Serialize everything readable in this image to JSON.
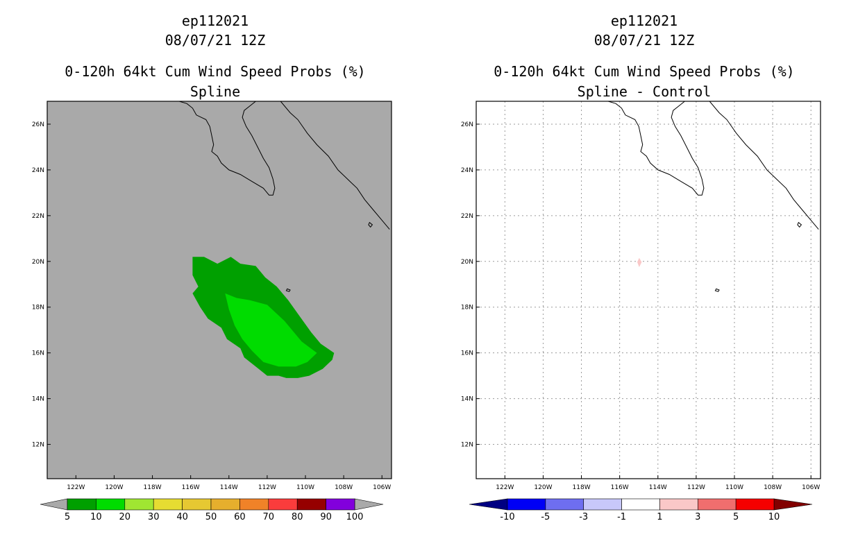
{
  "chart_data": [
    {
      "type": "heatmap",
      "storm_id": "ep112021",
      "datetime": "08/07/21 12Z",
      "title": "0-120h 64kt Cum Wind Speed Probs (%)",
      "subtitle": "Spline",
      "xlim": [
        -123.5,
        -105.5
      ],
      "ylim": [
        10.5,
        27
      ],
      "x_ticks": [
        "122W",
        "120W",
        "118W",
        "116W",
        "114W",
        "112W",
        "110W",
        "108W",
        "106W"
      ],
      "y_ticks": [
        "12N",
        "14N",
        "16N",
        "18N",
        "20N",
        "22N",
        "24N",
        "26N"
      ],
      "grid": false,
      "background": "#a9a9a9",
      "colorbar": {
        "labels": [
          "5",
          "10",
          "20",
          "30",
          "40",
          "50",
          "60",
          "70",
          "80",
          "90",
          "100"
        ],
        "colors": [
          "#00a000",
          "#00dc00",
          "#a0e632",
          "#e6dc32",
          "#e6c832",
          "#e6af2d",
          "#f08228",
          "#fa3c3c",
          "#960000",
          "#8200dc"
        ],
        "under": "#a9a9a9",
        "over": "#a9a9a9"
      },
      "regions": [
        {
          "name": "prob-5-10",
          "value_range": "5-10",
          "color": "#00a000",
          "polygon": [
            [
              -115.9,
              20.2
            ],
            [
              -115.3,
              20.2
            ],
            [
              -114.6,
              19.9
            ],
            [
              -113.9,
              20.2
            ],
            [
              -113.4,
              19.9
            ],
            [
              -112.6,
              19.8
            ],
            [
              -112.1,
              19.3
            ],
            [
              -111.5,
              18.9
            ],
            [
              -110.9,
              18.3
            ],
            [
              -110.3,
              17.6
            ],
            [
              -109.7,
              16.9
            ],
            [
              -109.2,
              16.4
            ],
            [
              -108.5,
              16.0
            ],
            [
              -108.6,
              15.7
            ],
            [
              -109.1,
              15.3
            ],
            [
              -109.8,
              15.0
            ],
            [
              -110.4,
              14.9
            ],
            [
              -111.0,
              14.9
            ],
            [
              -111.4,
              15.0
            ],
            [
              -112.0,
              15.0
            ],
            [
              -112.6,
              15.4
            ],
            [
              -113.2,
              15.8
            ],
            [
              -113.4,
              16.2
            ],
            [
              -114.1,
              16.6
            ],
            [
              -114.4,
              17.1
            ],
            [
              -115.1,
              17.5
            ],
            [
              -115.5,
              18.0
            ],
            [
              -115.9,
              18.6
            ],
            [
              -115.6,
              18.9
            ],
            [
              -115.9,
              19.4
            ]
          ]
        },
        {
          "name": "prob-10-20",
          "value_range": "10-20",
          "color": "#00dc00",
          "polygon": [
            [
              -114.2,
              18.6
            ],
            [
              -113.6,
              18.4
            ],
            [
              -112.9,
              18.3
            ],
            [
              -112.0,
              18.1
            ],
            [
              -111.1,
              17.4
            ],
            [
              -110.2,
              16.5
            ],
            [
              -109.4,
              16.0
            ],
            [
              -109.9,
              15.6
            ],
            [
              -110.5,
              15.4
            ],
            [
              -111.4,
              15.4
            ],
            [
              -112.2,
              15.6
            ],
            [
              -112.8,
              16.1
            ],
            [
              -113.3,
              16.6
            ],
            [
              -113.7,
              17.2
            ],
            [
              -114.0,
              17.9
            ]
          ]
        }
      ]
    },
    {
      "type": "heatmap",
      "storm_id": "ep112021",
      "datetime": "08/07/21 12Z",
      "title": "0-120h 64kt Cum Wind Speed Probs (%)",
      "subtitle": "Spline - Control",
      "xlim": [
        -123.5,
        -105.5
      ],
      "ylim": [
        10.5,
        27
      ],
      "x_ticks": [
        "122W",
        "120W",
        "118W",
        "116W",
        "114W",
        "112W",
        "110W",
        "108W",
        "106W"
      ],
      "y_ticks": [
        "12N",
        "14N",
        "16N",
        "18N",
        "20N",
        "22N",
        "24N",
        "26N"
      ],
      "grid": true,
      "background": "#ffffff",
      "colorbar": {
        "labels": [
          "-10",
          "-5",
          "-3",
          "-1",
          "1",
          "3",
          "5",
          "10"
        ],
        "colors": [
          "#0000f5",
          "#6e6ef0",
          "#c8c8fa",
          "#ffffff",
          "#fac8c8",
          "#f06e6e",
          "#f50000"
        ],
        "under": "#000082",
        "over": "#820000"
      },
      "regions": [
        {
          "name": "diff-1-3",
          "value_range": "1-3",
          "color": "#fac8c8",
          "polygon": [
            [
              -114.98,
              20.15
            ],
            [
              -114.85,
              19.97
            ],
            [
              -114.98,
              19.75
            ],
            [
              -115.08,
              19.97
            ]
          ]
        }
      ]
    }
  ]
}
